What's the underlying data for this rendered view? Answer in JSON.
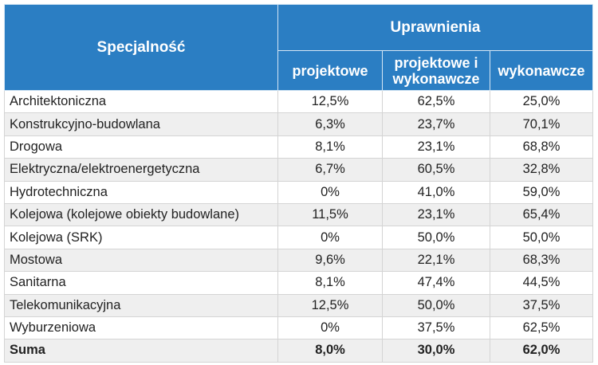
{
  "header": {
    "specialty": "Specjalność",
    "group": "Uprawnienia",
    "columns": [
      "projektowe",
      "projektowe i wykonawcze",
      "wykonawcze"
    ]
  },
  "colors": {
    "header_bg": "#2b7ec3",
    "header_text": "#ffffff",
    "alt_row": "#efefef"
  },
  "rows": [
    {
      "name": "Architektoniczna",
      "values": [
        "12,5%",
        "62,5%",
        "25,0%"
      ]
    },
    {
      "name": "Konstrukcyjno-budowlana",
      "values": [
        "6,3%",
        "23,7%",
        "70,1%"
      ]
    },
    {
      "name": "Drogowa",
      "values": [
        "8,1%",
        "23,1%",
        "68,8%"
      ]
    },
    {
      "name": "Elektryczna/elektroenergetyczna",
      "values": [
        "6,7%",
        "60,5%",
        "32,8%"
      ]
    },
    {
      "name": "Hydrotechniczna",
      "values": [
        "0%",
        "41,0%",
        "59,0%"
      ]
    },
    {
      "name": "Kolejowa (kolejowe obiekty budowlane)",
      "values": [
        "11,5%",
        "23,1%",
        "65,4%"
      ]
    },
    {
      "name": "Kolejowa (SRK)",
      "values": [
        "0%",
        "50,0%",
        "50,0%"
      ]
    },
    {
      "name": "Mostowa",
      "values": [
        "9,6%",
        "22,1%",
        "68,3%"
      ]
    },
    {
      "name": "Sanitarna",
      "values": [
        "8,1%",
        "47,4%",
        "44,5%"
      ]
    },
    {
      "name": "Telekomunikacyjna",
      "values": [
        "12,5%",
        "50,0%",
        "37,5%"
      ]
    },
    {
      "name": "Wyburzeniowa",
      "values": [
        "0%",
        "37,5%",
        "62,5%"
      ]
    }
  ],
  "total": {
    "name": "Suma",
    "values": [
      "8,0%",
      "30,0%",
      "62,0%"
    ]
  }
}
